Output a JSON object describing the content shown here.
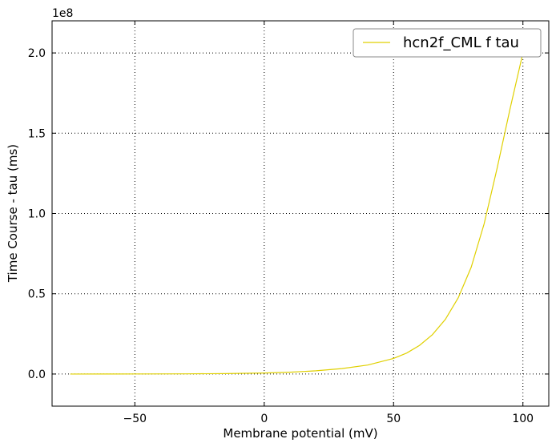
{
  "chart_data": {
    "type": "line",
    "title": "",
    "xlabel": "Membrane potential (mV)",
    "ylabel": "Time Course - tau (ms)",
    "y_offset_label": "1e8",
    "xlim": [
      -82,
      110
    ],
    "ylim": [
      -0.2,
      2.2
    ],
    "y_scale_factor": 100000000,
    "x_ticks": [
      -50,
      0,
      50,
      100
    ],
    "x_tick_labels": [
      "−50",
      "0",
      "50",
      "100"
    ],
    "y_ticks": [
      0.0,
      0.5,
      1.0,
      1.5,
      2.0
    ],
    "y_tick_labels": [
      "0.0",
      "0.5",
      "1.0",
      "1.5",
      "2.0"
    ],
    "grid": true,
    "legend_position": "top-right",
    "series": [
      {
        "name": "hcn2f_CML f tau",
        "color": "#e0d000",
        "x": [
          -75,
          -60,
          -45,
          -30,
          -15,
          0,
          10,
          20,
          30,
          40,
          50,
          55,
          60,
          65,
          70,
          75,
          80,
          85,
          90,
          95,
          100
        ],
        "y": [
          0.0,
          0.0001,
          0.0005,
          0.0012,
          0.0028,
          0.0065,
          0.0115,
          0.02,
          0.034,
          0.056,
          0.097,
          0.13,
          0.178,
          0.245,
          0.34,
          0.475,
          0.665,
          0.935,
          1.28,
          1.65,
          2.0
        ]
      }
    ]
  }
}
